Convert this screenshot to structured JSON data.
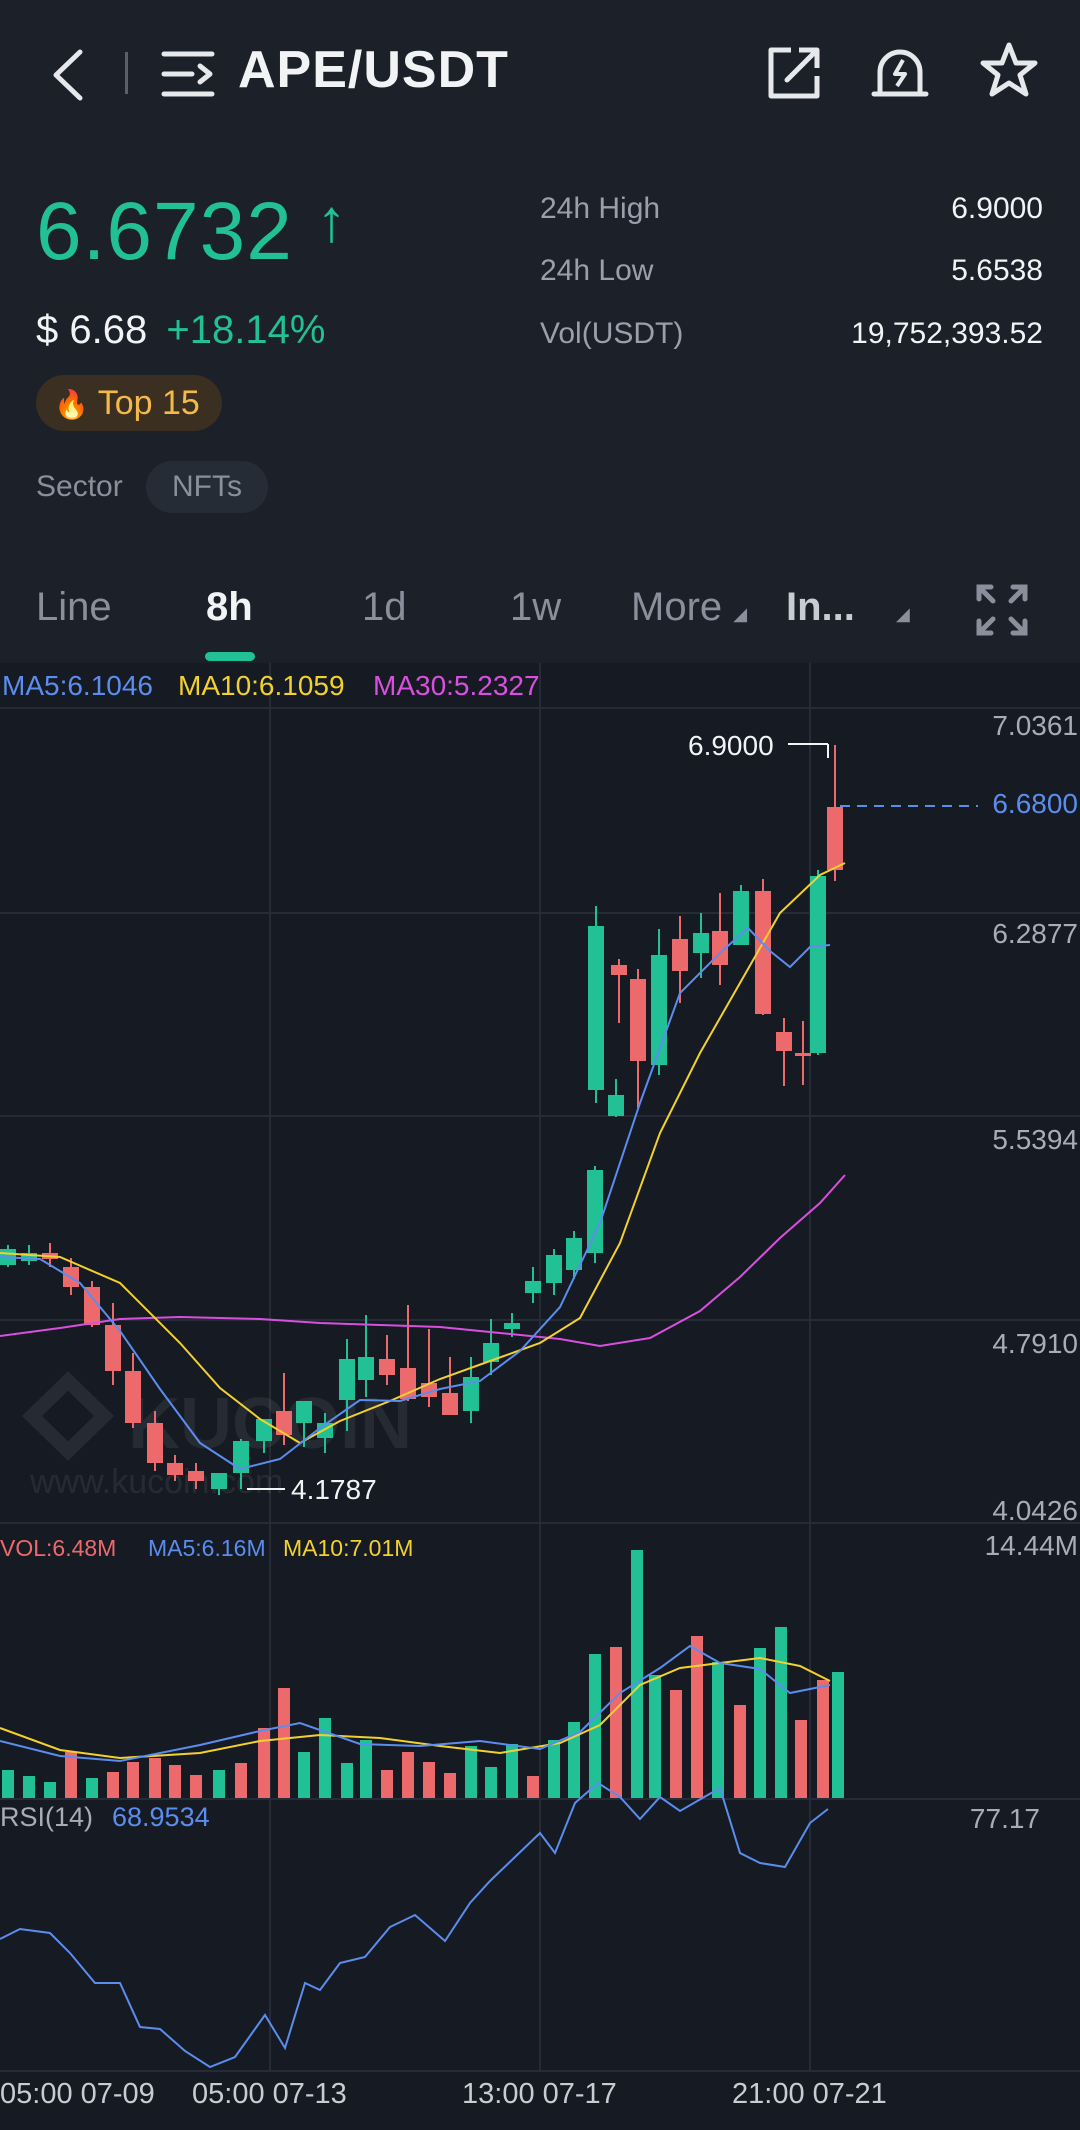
{
  "header": {
    "pair": "APE/USDT",
    "icons": [
      "back-arrow-icon",
      "menu-icon",
      "share-icon",
      "alert-bell-icon",
      "star-icon"
    ]
  },
  "price": {
    "last": "6.6732",
    "arrow": "↑",
    "usd_prefix": "$",
    "usd": "6.68",
    "change": "+18.14%",
    "badge_emoji": "🔥",
    "badge": "Top 15",
    "sector_label": "Sector",
    "sector": "NFTs"
  },
  "stats": {
    "high_label": "24h High",
    "high": "6.9000",
    "low_label": "24h Low",
    "low": "5.6538",
    "vol_label": "Vol(USDT)",
    "vol": "19,752,393.52"
  },
  "tabs": {
    "line": "Line",
    "h8": "8h",
    "d1": "1d",
    "w1": "1w",
    "more": "More",
    "indicator": "In..."
  },
  "indicators": {
    "ma5": "MA5:6.1046",
    "ma10": "MA10:6.1059",
    "ma30": "MA30:5.2327",
    "vol": "VOL:6.48M",
    "vol_ma5": "MA5:6.16M",
    "vol_ma10": "MA10:7.01M",
    "rsi_label": "RSI(14)",
    "rsi_value": "68.9534"
  },
  "axis": {
    "price_ticks": [
      "7.0361",
      "6.2877",
      "5.5394",
      "4.7910",
      "4.0426"
    ],
    "current_price": "6.6800",
    "max_marker": "6.9000",
    "min_marker": "4.1787",
    "vol_max": "14.44M",
    "rsi_max": "77.17",
    "times": [
      "05:00 07-09",
      "05:00 07-13",
      "13:00 07-17",
      "21:00 07-21"
    ]
  },
  "colors": {
    "up": "#21c195",
    "down": "#ec6a6c",
    "ma5": "#5b8def",
    "ma10": "#f2d12e",
    "ma30": "#d94fe0"
  },
  "watermark": "KuCoin www.kucoin.com"
}
